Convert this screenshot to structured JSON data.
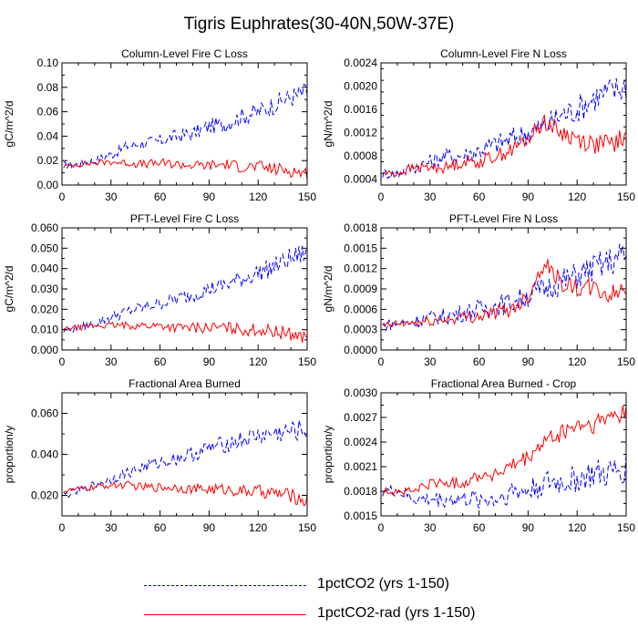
{
  "figure": {
    "title": "Tigris Euphrates(30-40N,50W-37E)",
    "x_ticks": [
      0,
      30,
      60,
      90,
      120,
      150
    ],
    "series_styles": {
      "1pctCO2": {
        "color": "#0000ff",
        "dash": "dashed"
      },
      "1pctCO2-rad": {
        "color": "#ff0000",
        "dash": "solid"
      }
    }
  },
  "legend": {
    "items": [
      {
        "label": "1pctCO2 (yrs 1-150)",
        "color": "#0000ff",
        "dash": "dashed"
      },
      {
        "label": "1pctCO2-rad (yrs 1-150)",
        "color": "#ff0000",
        "dash": "solid"
      }
    ]
  },
  "chart_data": [
    {
      "type": "line",
      "title": "Column-Level Fire C Loss",
      "ylabel": "gC/m^2/d",
      "xlim": [
        0,
        150
      ],
      "ylim": [
        0,
        0.1
      ],
      "y_ticks": [
        "0.00",
        "0.02",
        "0.04",
        "0.06",
        "0.08",
        "0.10"
      ],
      "x": [
        0,
        10,
        20,
        30,
        40,
        50,
        60,
        70,
        80,
        90,
        100,
        110,
        120,
        130,
        140,
        150
      ],
      "series": [
        {
          "name": "1pctCO2",
          "values": [
            0.016,
            0.017,
            0.02,
            0.025,
            0.032,
            0.034,
            0.036,
            0.04,
            0.042,
            0.048,
            0.05,
            0.056,
            0.06,
            0.066,
            0.072,
            0.076
          ]
        },
        {
          "name": "1pctCO2-rad",
          "values": [
            0.015,
            0.017,
            0.018,
            0.019,
            0.018,
            0.017,
            0.018,
            0.017,
            0.016,
            0.016,
            0.017,
            0.015,
            0.015,
            0.013,
            0.012,
            0.009
          ]
        }
      ]
    },
    {
      "type": "line",
      "title": "Column-Level Fire N Loss",
      "ylabel": "gN/m^2/d",
      "xlim": [
        0,
        150
      ],
      "ylim": [
        0.0003,
        0.0024
      ],
      "y_ticks": [
        "0.0004",
        "0.0008",
        "0.0012",
        "0.0016",
        "0.0020",
        "0.0024"
      ],
      "x": [
        0,
        10,
        20,
        30,
        40,
        50,
        60,
        70,
        80,
        90,
        100,
        110,
        120,
        130,
        140,
        150
      ],
      "series": [
        {
          "name": "1pctCO2",
          "values": [
            0.0005,
            0.0005,
            0.0006,
            0.0007,
            0.0008,
            0.0008,
            0.0009,
            0.001,
            0.0011,
            0.0012,
            0.0013,
            0.0015,
            0.0016,
            0.0018,
            0.0019,
            0.002
          ]
        },
        {
          "name": "1pctCO2-rad",
          "values": [
            0.0005,
            0.0005,
            0.0006,
            0.0006,
            0.0006,
            0.0007,
            0.0007,
            0.0008,
            0.0009,
            0.0011,
            0.0014,
            0.0012,
            0.0011,
            0.001,
            0.001,
            0.0011
          ]
        }
      ]
    },
    {
      "type": "line",
      "title": "PFT-Level Fire C Loss",
      "ylabel": "gC/m^2/d",
      "xlim": [
        0,
        150
      ],
      "ylim": [
        0,
        0.06
      ],
      "y_ticks": [
        "0.000",
        "0.010",
        "0.020",
        "0.030",
        "0.040",
        "0.050",
        "0.060"
      ],
      "x": [
        0,
        10,
        20,
        30,
        40,
        50,
        60,
        70,
        80,
        90,
        100,
        110,
        120,
        130,
        140,
        150
      ],
      "series": [
        {
          "name": "1pctCO2",
          "values": [
            0.009,
            0.011,
            0.013,
            0.016,
            0.019,
            0.021,
            0.023,
            0.025,
            0.027,
            0.03,
            0.032,
            0.035,
            0.038,
            0.041,
            0.045,
            0.048
          ]
        },
        {
          "name": "1pctCO2-rad",
          "values": [
            0.01,
            0.011,
            0.012,
            0.012,
            0.012,
            0.012,
            0.012,
            0.011,
            0.011,
            0.011,
            0.011,
            0.01,
            0.01,
            0.009,
            0.008,
            0.006
          ]
        }
      ]
    },
    {
      "type": "line",
      "title": "PFT-Level Fire N Loss",
      "ylabel": "gN/m^2/d",
      "xlim": [
        0,
        150
      ],
      "ylim": [
        0,
        0.0018
      ],
      "y_ticks": [
        "0.0000",
        "0.0003",
        "0.0006",
        "0.0009",
        "0.0012",
        "0.0015",
        "0.0018"
      ],
      "x": [
        0,
        10,
        20,
        30,
        40,
        50,
        60,
        70,
        80,
        90,
        100,
        110,
        120,
        130,
        140,
        150
      ],
      "series": [
        {
          "name": "1pctCO2",
          "values": [
            0.00035,
            0.0004,
            0.00042,
            0.00048,
            0.0005,
            0.00055,
            0.0006,
            0.00065,
            0.0007,
            0.0008,
            0.0009,
            0.001,
            0.0011,
            0.0012,
            0.0013,
            0.0014
          ]
        },
        {
          "name": "1pctCO2-rad",
          "values": [
            0.00035,
            0.00038,
            0.0004,
            0.00042,
            0.00045,
            0.00048,
            0.0005,
            0.00055,
            0.0006,
            0.0008,
            0.0013,
            0.001,
            0.0009,
            0.0009,
            0.0008,
            0.0009
          ]
        }
      ]
    },
    {
      "type": "line",
      "title": "Fractional Area Burned",
      "ylabel": "proportion/y",
      "xlim": [
        0,
        150
      ],
      "ylim": [
        0.01,
        0.07
      ],
      "y_ticks": [
        "0.020",
        "0.040",
        "0.060"
      ],
      "x": [
        0,
        10,
        20,
        30,
        40,
        50,
        60,
        70,
        80,
        90,
        100,
        110,
        120,
        130,
        140,
        150
      ],
      "series": [
        {
          "name": "1pctCO2",
          "values": [
            0.02,
            0.022,
            0.025,
            0.028,
            0.031,
            0.034,
            0.036,
            0.038,
            0.04,
            0.043,
            0.045,
            0.047,
            0.049,
            0.05,
            0.051,
            0.052
          ]
        },
        {
          "name": "1pctCO2-rad",
          "values": [
            0.022,
            0.023,
            0.024,
            0.025,
            0.025,
            0.024,
            0.024,
            0.024,
            0.023,
            0.023,
            0.023,
            0.022,
            0.022,
            0.021,
            0.02,
            0.017
          ]
        }
      ]
    },
    {
      "type": "line",
      "title": "Fractional Area Burned - Crop",
      "ylabel": "proportion/y",
      "xlim": [
        0,
        150
      ],
      "ylim": [
        0.0015,
        0.003
      ],
      "y_ticks": [
        "0.0015",
        "0.0018",
        "0.0021",
        "0.0024",
        "0.0027",
        "0.0030"
      ],
      "x": [
        0,
        10,
        20,
        30,
        40,
        50,
        60,
        70,
        80,
        90,
        100,
        110,
        120,
        130,
        140,
        150
      ],
      "series": [
        {
          "name": "1pctCO2",
          "values": [
            0.0018,
            0.0018,
            0.0017,
            0.0017,
            0.0017,
            0.0017,
            0.0017,
            0.0017,
            0.0018,
            0.0018,
            0.0019,
            0.0019,
            0.00195,
            0.002,
            0.002,
            0.0021
          ]
        },
        {
          "name": "1pctCO2-rad",
          "values": [
            0.0018,
            0.0018,
            0.0018,
            0.0019,
            0.0019,
            0.0019,
            0.002,
            0.002,
            0.0021,
            0.0022,
            0.0024,
            0.0025,
            0.0026,
            0.0026,
            0.0027,
            0.0028
          ]
        }
      ]
    }
  ]
}
